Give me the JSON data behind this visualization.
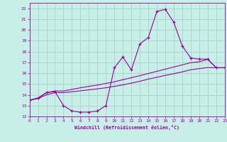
{
  "xlabel": "Windchill (Refroidissement éolien,°C)",
  "bg_color": "#c8eee8",
  "line_color": "#990099",
  "grid_color": "#9fcfbf",
  "xlim": [
    0,
    23
  ],
  "ylim": [
    12,
    22.5
  ],
  "xticks": [
    0,
    1,
    2,
    3,
    4,
    5,
    6,
    7,
    8,
    9,
    10,
    11,
    12,
    13,
    14,
    15,
    16,
    17,
    18,
    19,
    20,
    21,
    22,
    23
  ],
  "yticks": [
    12,
    13,
    14,
    15,
    16,
    17,
    18,
    19,
    20,
    21,
    22
  ],
  "s1_x": [
    0,
    1,
    2,
    3,
    4,
    5,
    6,
    7,
    8,
    9,
    10,
    11,
    12,
    13,
    14,
    15,
    16,
    17,
    18,
    19,
    20,
    21,
    22,
    23
  ],
  "s1_y": [
    13.5,
    13.7,
    14.2,
    14.3,
    13.0,
    12.5,
    12.4,
    12.4,
    12.5,
    13.0,
    16.5,
    17.5,
    16.3,
    18.7,
    19.3,
    21.7,
    21.9,
    20.7,
    18.5,
    17.4,
    17.3,
    17.3,
    16.5,
    16.5
  ],
  "s2_x": [
    0,
    1,
    2,
    3,
    4,
    5,
    6,
    7,
    8,
    9,
    10,
    11,
    12,
    13,
    14,
    15,
    16,
    17,
    18,
    19,
    20,
    21,
    22,
    23
  ],
  "s2_y": [
    13.5,
    13.7,
    14.2,
    14.35,
    14.35,
    14.5,
    14.65,
    14.78,
    14.9,
    15.05,
    15.2,
    15.4,
    15.58,
    15.77,
    15.97,
    16.17,
    16.37,
    16.57,
    16.77,
    16.97,
    17.05,
    17.27,
    16.5,
    16.5
  ],
  "s3_x": [
    0,
    1,
    2,
    3,
    4,
    5,
    6,
    7,
    8,
    9,
    10,
    11,
    12,
    13,
    14,
    15,
    16,
    17,
    18,
    19,
    20,
    21,
    22,
    23
  ],
  "s3_y": [
    13.5,
    13.65,
    14.0,
    14.2,
    14.2,
    14.28,
    14.37,
    14.46,
    14.55,
    14.65,
    14.78,
    14.92,
    15.08,
    15.25,
    15.45,
    15.62,
    15.8,
    15.95,
    16.12,
    16.32,
    16.42,
    16.52,
    16.5,
    16.5
  ]
}
